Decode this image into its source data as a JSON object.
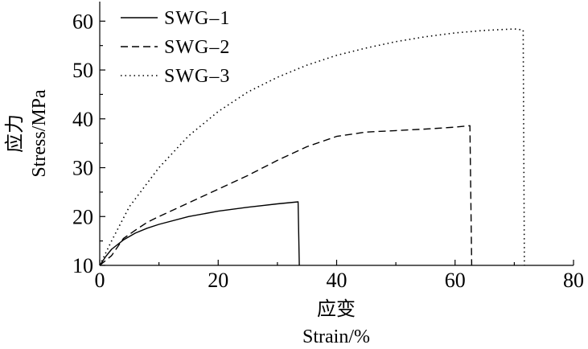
{
  "chart_data": {
    "type": "line",
    "xlabel_cn": "应变",
    "xlabel_en": "Strain/%",
    "ylabel_cn": "应力",
    "ylabel_en": "Stress/MPa",
    "xlim": [
      0,
      80
    ],
    "ylim": [
      10,
      64
    ],
    "xticks": [
      0,
      20,
      40,
      60,
      80
    ],
    "yticks": [
      10,
      20,
      30,
      40,
      50,
      60
    ],
    "grid": false,
    "legend_position": "top-left",
    "series": [
      {
        "name": "SWG–1",
        "style": "solid",
        "x": [
          0,
          1,
          2,
          4,
          6,
          8,
          10,
          15,
          20,
          25,
          30,
          33.5,
          33.7
        ],
        "y": [
          10,
          11.8,
          13.3,
          15.2,
          16.6,
          17.6,
          18.4,
          20,
          21.1,
          21.9,
          22.6,
          23,
          10
        ],
        "vertical_drop": true
      },
      {
        "name": "SWG–2",
        "style": "dashed",
        "x": [
          0,
          2,
          4,
          6,
          8,
          10,
          15,
          20,
          25,
          30,
          35,
          40,
          45,
          50,
          55,
          60,
          62.5,
          62.8
        ],
        "y": [
          10,
          12,
          15.5,
          17.2,
          18.8,
          20,
          22.8,
          25.6,
          28.4,
          31.5,
          34.3,
          36.4,
          37.3,
          37.6,
          37.9,
          38.3,
          38.6,
          10
        ],
        "vertical_drop": true
      },
      {
        "name": "SWG–3",
        "style": "dotted",
        "x": [
          0,
          2,
          5,
          10,
          15,
          20,
          25,
          30,
          35,
          40,
          45,
          50,
          55,
          60,
          65,
          70,
          71.5,
          71.7
        ],
        "y": [
          10,
          15,
          22,
          30,
          36.5,
          41.5,
          45.5,
          48.5,
          51,
          53,
          54.5,
          55.8,
          56.8,
          57.6,
          58.1,
          58.4,
          58.2,
          10
        ],
        "vertical_drop": true
      }
    ]
  }
}
